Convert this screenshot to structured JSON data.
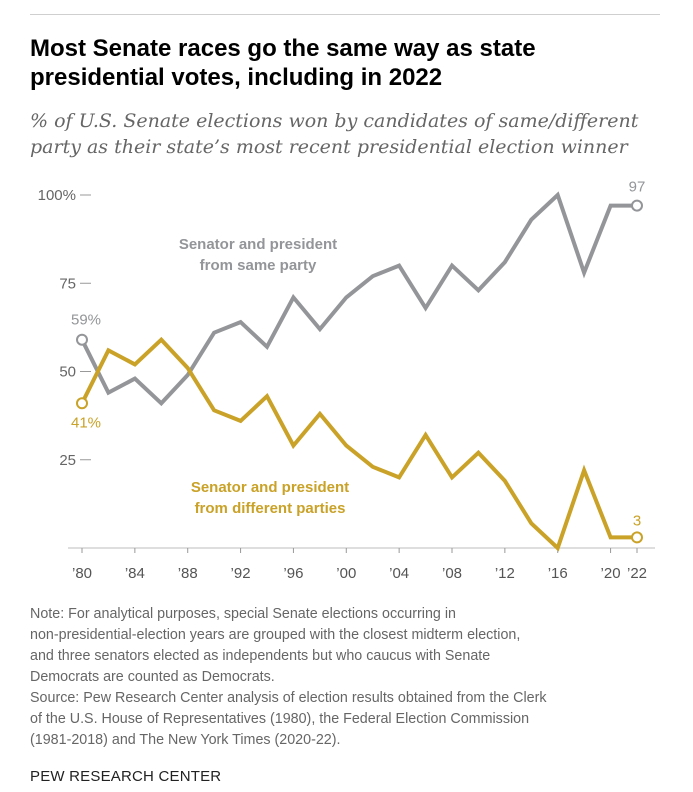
{
  "title": "Most Senate races go the same way as state presidential votes, including in 2022",
  "subtitle": "% of U.S. Senate elections won by candidates of same/different party as their state’s most recent presidential election winner",
  "chart_data": {
    "type": "line",
    "x": [
      1980,
      1982,
      1984,
      1986,
      1988,
      1990,
      1992,
      1994,
      1996,
      1998,
      2000,
      2002,
      2004,
      2006,
      2008,
      2010,
      2012,
      2014,
      2016,
      2018,
      2020,
      2022
    ],
    "x_tick_values": [
      1980,
      1984,
      1988,
      1992,
      1996,
      2000,
      2004,
      2008,
      2012,
      2016,
      2020,
      2022
    ],
    "x_tick_labels": [
      "’80",
      "’84",
      "’88",
      "’92",
      "’96",
      "’00",
      "’04",
      "’08",
      "’12",
      "’16",
      "’20",
      "’22"
    ],
    "y_tick_values": [
      25,
      50,
      75,
      100
    ],
    "y_tick_labels": [
      "25",
      "50",
      "75",
      "100%"
    ],
    "ylim": [
      0,
      100
    ],
    "grid": false,
    "series": [
      {
        "name": "Senator and president from same party",
        "label_lines": [
          "Senator and president",
          "from same party"
        ],
        "color": "#939598",
        "values": [
          59,
          44,
          48,
          41,
          49,
          61,
          64,
          57,
          71,
          62,
          71,
          77,
          80,
          68,
          80,
          73,
          81,
          93,
          100,
          78,
          97,
          97
        ],
        "start_label": "59%",
        "end_label": "97"
      },
      {
        "name": "Senator and president from different parties",
        "label_lines": [
          "Senator and president",
          "from different parties"
        ],
        "color": "#c9a227",
        "values": [
          41,
          56,
          52,
          59,
          51,
          39,
          36,
          43,
          29,
          38,
          29,
          23,
          20,
          32,
          20,
          27,
          19,
          7,
          0,
          22,
          3,
          3
        ],
        "start_label": "41%",
        "end_label": "3"
      }
    ]
  },
  "note_lines": [
    "Note: For analytical purposes, special Senate elections occurring in",
    "non-presidential-election years are grouped with the closest midterm election,",
    "and three senators elected as independents but who caucus with Senate",
    "Democrats are counted as Democrats.",
    "Source: Pew Research Center analysis of election results obtained from the Clerk",
    "of the U.S. House of Representatives (1980), the Federal Election Commission",
    "(1981-2018) and The New York Times (2020-22)."
  ],
  "footer": "PEW RESEARCH CENTER"
}
